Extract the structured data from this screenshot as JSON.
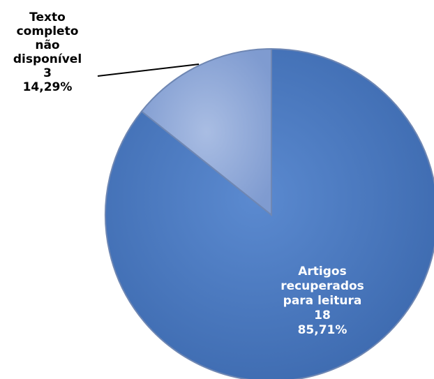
{
  "chart_data": {
    "type": "pie",
    "slices": [
      {
        "label_lines": [
          "Texto",
          "completo",
          "não",
          "disponível"
        ],
        "value": 3,
        "value_label": "3",
        "percent_label": "14,29%",
        "color": "#8fa9d8",
        "text_color": "#000000"
      },
      {
        "label_lines": [
          "Artigos",
          "recuperados",
          "para leitura"
        ],
        "value": 18,
        "value_label": "18",
        "percent_label": "85,71%",
        "color": "#4a7bc1",
        "text_color": "#ffffff"
      }
    ],
    "start": "top",
    "direction": "counterclockwise",
    "legend": "none"
  }
}
